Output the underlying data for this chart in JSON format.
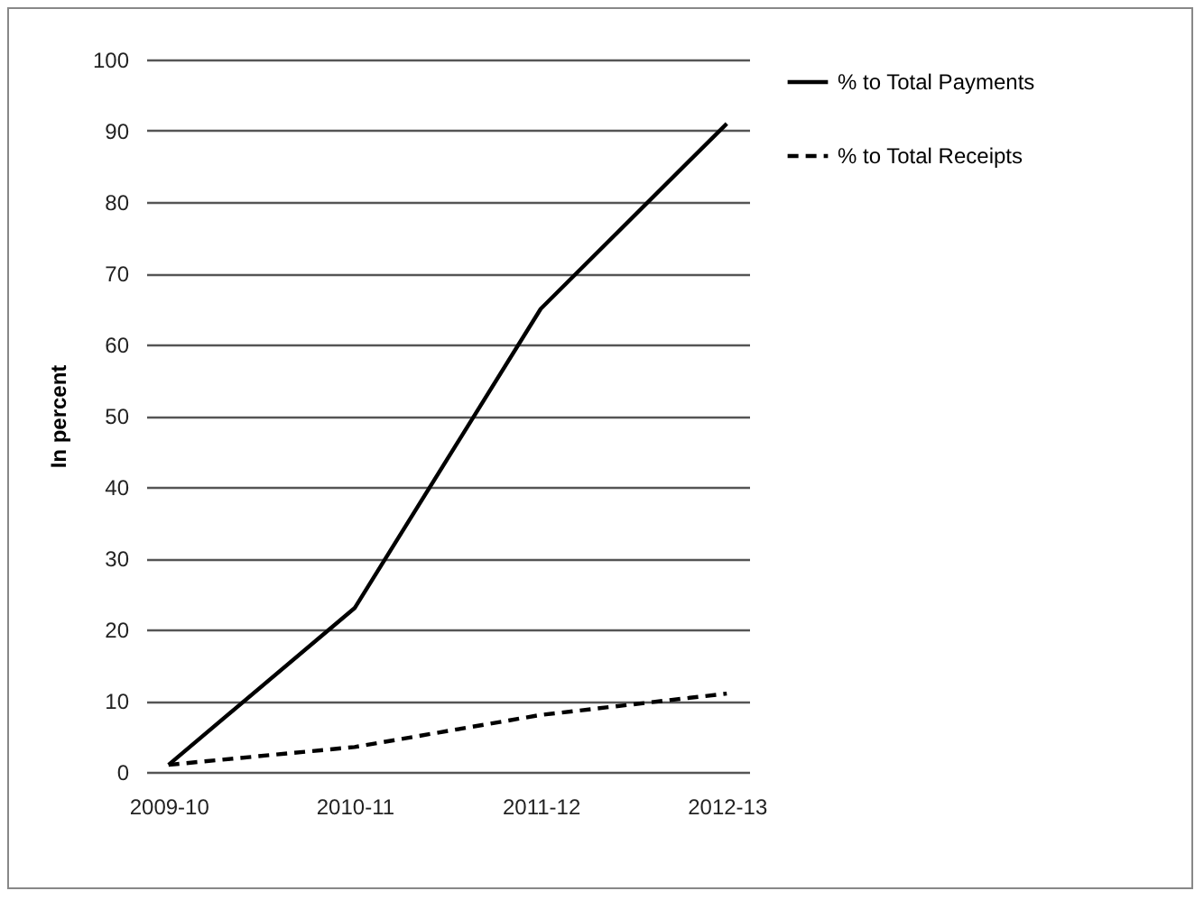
{
  "chart_data": {
    "type": "line",
    "ylabel": "In percent",
    "categories": [
      "2009-10",
      "2010-11",
      "2011-12",
      "2012-13"
    ],
    "series": [
      {
        "name": "% to Total Payments",
        "color": "#000000",
        "line_style": "solid",
        "values": [
          1,
          23,
          65,
          91
        ]
      },
      {
        "name": "% to Total Receipts",
        "color": "#000000",
        "line_style": "dashed",
        "values": [
          1,
          3.5,
          8,
          11
        ]
      }
    ],
    "ylim": [
      0,
      100
    ],
    "yticks": [
      0,
      10,
      20,
      30,
      40,
      50,
      60,
      70,
      80,
      90,
      100
    ],
    "grid": "y",
    "legend": "right",
    "marker": "none"
  }
}
